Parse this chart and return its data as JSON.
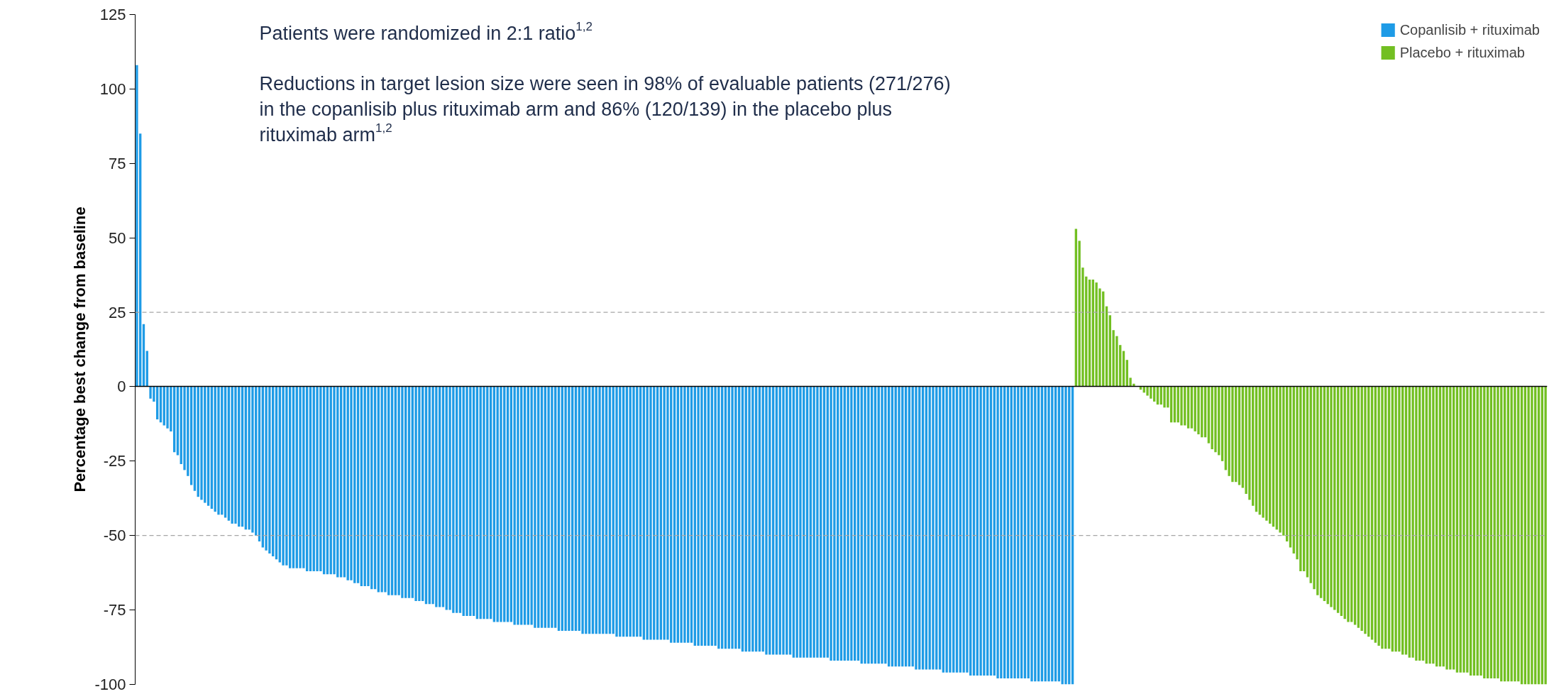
{
  "chart_data": {
    "type": "bar",
    "ylabel": "Percentage best change from baseline",
    "annotations": [
      "Patients were randomized in 2:1 ratio$^{1,2}$",
      "Reductions in target lesion size were seen in 98% of evaluable patients (271/276) in the copanlisib plus rituximab arm and 86% (120/139) in the placebo plus rituximab arm$^{1,2}$"
    ],
    "categories": [
      null,
      null,
      null,
      null,
      null,
      null,
      null,
      null,
      null,
      null,
      null,
      null,
      null,
      null,
      null,
      null,
      null,
      null,
      null,
      null,
      null,
      null,
      null,
      null,
      null,
      null,
      null,
      null,
      null,
      null,
      null,
      null,
      null,
      null,
      null,
      null,
      null,
      null,
      null,
      null,
      null,
      null,
      null,
      null,
      null,
      null,
      null,
      null,
      null,
      null,
      null,
      null,
      null,
      null,
      null,
      null,
      null,
      null,
      null,
      null,
      null,
      null,
      null,
      null,
      null,
      null,
      null,
      null,
      null,
      null,
      null,
      null,
      null,
      null,
      null,
      null,
      null,
      null,
      null,
      null,
      null,
      null,
      null,
      null,
      null,
      null,
      null,
      null,
      null,
      null,
      null,
      null,
      null,
      null,
      null,
      null,
      null,
      null,
      null,
      null,
      null,
      null,
      null,
      null,
      null,
      null,
      null,
      null,
      null,
      null,
      null,
      null,
      null,
      null,
      null,
      null,
      null,
      null,
      null,
      null,
      null,
      null,
      null,
      null,
      null,
      null,
      null,
      null,
      null,
      null,
      null,
      null,
      null,
      null,
      null,
      null,
      null,
      null,
      null,
      null,
      null,
      null,
      null,
      null,
      null,
      null,
      null,
      null,
      null,
      null,
      null,
      null,
      null,
      null,
      null,
      null,
      null,
      null,
      null,
      null,
      null,
      null,
      null,
      null,
      null,
      null,
      null,
      null,
      null,
      null,
      null,
      null,
      null,
      null,
      null,
      null,
      null,
      null,
      null,
      null,
      null,
      null,
      null,
      null,
      null,
      null,
      null,
      null,
      null,
      null,
      null,
      null,
      null,
      null,
      null,
      null,
      null,
      null,
      null,
      null,
      null,
      null,
      null,
      null,
      null,
      null,
      null,
      null,
      null,
      null,
      null,
      null,
      null,
      null,
      null,
      null,
      null,
      null,
      null,
      null,
      null,
      null,
      null,
      null,
      null,
      null,
      null,
      null,
      null,
      null,
      null,
      null,
      null,
      null,
      null,
      null,
      null,
      null,
      null,
      null,
      null,
      null,
      null,
      null,
      null,
      null,
      null,
      null,
      null,
      null,
      null,
      null,
      null,
      null,
      null,
      null,
      null,
      null,
      null,
      null,
      null,
      null,
      null,
      null,
      null,
      null,
      null,
      null,
      null,
      null,
      null,
      null,
      null,
      null,
      null,
      null,
      null,
      null,
      null,
      null,
      null,
      null,
      null,
      null,
      null,
      null,
      null,
      null,
      null,
      null,
      null,
      null,
      null,
      null,
      null,
      null,
      null,
      null,
      null,
      null,
      null,
      null,
      null,
      null,
      null,
      null,
      null,
      null,
      null,
      null,
      null,
      null,
      null,
      null,
      null,
      null,
      null,
      null,
      null,
      null,
      null,
      null,
      null,
      null,
      null,
      null,
      null,
      null,
      null,
      null,
      null,
      null,
      null,
      null,
      null,
      null,
      null,
      null,
      null,
      null,
      null,
      null,
      null,
      null,
      null,
      null,
      null,
      null,
      null,
      null,
      null,
      null,
      null,
      null,
      null,
      null,
      null,
      null,
      null,
      null,
      null,
      null,
      null,
      null,
      null,
      null,
      null,
      null,
      null,
      null,
      null,
      null,
      null,
      null,
      null,
      null,
      null,
      null,
      null,
      null,
      null,
      null,
      null,
      null,
      null,
      null,
      null,
      null,
      null,
      null,
      null,
      null,
      null,
      null,
      null,
      null,
      null,
      null,
      null,
      null,
      null,
      null,
      null,
      null,
      null,
      null,
      null,
      null,
      null,
      null,
      null,
      null,
      null,
      null,
      null
    ],
    "series": [
      {
        "name": "Copanlisib + rituximab",
        "color": "#1e9be6",
        "values": [
          108,
          85,
          21,
          12,
          -4,
          -5,
          -11,
          -12,
          -13,
          -14,
          -15,
          -22,
          -23,
          -26,
          -28,
          -30,
          -33,
          -35,
          -37,
          -38,
          -39,
          -40,
          -41,
          -42,
          -43,
          -43,
          -44,
          -45,
          -46,
          -46,
          -47,
          -47,
          -48,
          -48,
          -49,
          -50,
          -52,
          -54,
          -55,
          -56,
          -57,
          -58,
          -59,
          -60,
          -60,
          -61,
          -61,
          -61,
          -61,
          -61,
          -62,
          -62,
          -62,
          -62,
          -62,
          -63,
          -63,
          -63,
          -63,
          -64,
          -64,
          -64,
          -65,
          -65,
          -66,
          -66,
          -67,
          -67,
          -67,
          -68,
          -68,
          -69,
          -69,
          -69,
          -70,
          -70,
          -70,
          -70,
          -71,
          -71,
          -71,
          -71,
          -72,
          -72,
          -72,
          -73,
          -73,
          -73,
          -74,
          -74,
          -74,
          -75,
          -75,
          -76,
          -76,
          -76,
          -77,
          -77,
          -77,
          -77,
          -78,
          -78,
          -78,
          -78,
          -78,
          -79,
          -79,
          -79,
          -79,
          -79,
          -79,
          -80,
          -80,
          -80,
          -80,
          -80,
          -80,
          -81,
          -81,
          -81,
          -81,
          -81,
          -81,
          -81,
          -82,
          -82,
          -82,
          -82,
          -82,
          -82,
          -82,
          -83,
          -83,
          -83,
          -83,
          -83,
          -83,
          -83,
          -83,
          -83,
          -83,
          -84,
          -84,
          -84,
          -84,
          -84,
          -84,
          -84,
          -84,
          -85,
          -85,
          -85,
          -85,
          -85,
          -85,
          -85,
          -85,
          -86,
          -86,
          -86,
          -86,
          -86,
          -86,
          -86,
          -87,
          -87,
          -87,
          -87,
          -87,
          -87,
          -87,
          -88,
          -88,
          -88,
          -88,
          -88,
          -88,
          -88,
          -89,
          -89,
          -89,
          -89,
          -89,
          -89,
          -89,
          -90,
          -90,
          -90,
          -90,
          -90,
          -90,
          -90,
          -90,
          -91,
          -91,
          -91,
          -91,
          -91,
          -91,
          -91,
          -91,
          -91,
          -91,
          -91,
          -92,
          -92,
          -92,
          -92,
          -92,
          -92,
          -92,
          -92,
          -92,
          -93,
          -93,
          -93,
          -93,
          -93,
          -93,
          -93,
          -93,
          -94,
          -94,
          -94,
          -94,
          -94,
          -94,
          -94,
          -94,
          -95,
          -95,
          -95,
          -95,
          -95,
          -95,
          -95,
          -95,
          -96,
          -96,
          -96,
          -96,
          -96,
          -96,
          -96,
          -96,
          -97,
          -97,
          -97,
          -97,
          -97,
          -97,
          -97,
          -97,
          -98,
          -98,
          -98,
          -98,
          -98,
          -98,
          -98,
          -98,
          -98,
          -98,
          -99,
          -99,
          -99,
          -99,
          -99,
          -99,
          -99,
          -99,
          -99,
          -100,
          -100,
          -100,
          -100,
          null,
          null,
          null,
          null,
          null,
          null,
          null,
          null,
          null,
          null,
          null,
          null,
          null,
          null,
          null,
          null,
          null,
          null,
          null,
          null,
          null,
          null,
          null,
          null,
          null,
          null,
          null,
          null,
          null,
          null,
          null,
          null,
          null,
          null,
          null,
          null,
          null,
          null,
          null,
          null,
          null,
          null,
          null,
          null,
          null,
          null,
          null,
          null,
          null,
          null,
          null,
          null,
          null,
          null,
          null,
          null,
          null,
          null,
          null,
          null,
          null,
          null,
          null,
          null,
          null,
          null,
          null,
          null,
          null,
          null,
          null,
          null,
          null,
          null,
          null,
          null,
          null,
          null,
          null,
          null,
          null,
          null,
          null,
          null,
          null,
          null,
          null,
          null,
          null,
          null,
          null,
          null,
          null,
          null,
          null,
          null,
          null,
          null,
          null,
          null,
          null,
          null,
          null,
          null,
          null,
          null,
          null,
          null,
          null,
          null,
          null,
          null,
          null,
          null,
          null,
          null,
          null,
          null,
          null,
          null,
          null,
          null,
          null,
          null,
          null,
          null,
          null,
          null,
          null,
          null,
          null,
          null,
          null,
          null,
          null,
          null,
          null,
          null,
          null
        ]
      },
      {
        "name": "Placebo + rituximab",
        "color": "#72bf22",
        "values": [
          null,
          null,
          null,
          null,
          null,
          null,
          null,
          null,
          null,
          null,
          null,
          null,
          null,
          null,
          null,
          null,
          null,
          null,
          null,
          null,
          null,
          null,
          null,
          null,
          null,
          null,
          null,
          null,
          null,
          null,
          null,
          null,
          null,
          null,
          null,
          null,
          null,
          null,
          null,
          null,
          null,
          null,
          null,
          null,
          null,
          null,
          null,
          null,
          null,
          null,
          null,
          null,
          null,
          null,
          null,
          null,
          null,
          null,
          null,
          null,
          null,
          null,
          null,
          null,
          null,
          null,
          null,
          null,
          null,
          null,
          null,
          null,
          null,
          null,
          null,
          null,
          null,
          null,
          null,
          null,
          null,
          null,
          null,
          null,
          null,
          null,
          null,
          null,
          null,
          null,
          null,
          null,
          null,
          null,
          null,
          null,
          null,
          null,
          null,
          null,
          null,
          null,
          null,
          null,
          null,
          null,
          null,
          null,
          null,
          null,
          null,
          null,
          null,
          null,
          null,
          null,
          null,
          null,
          null,
          null,
          null,
          null,
          null,
          null,
          null,
          null,
          null,
          null,
          null,
          null,
          null,
          null,
          null,
          null,
          null,
          null,
          null,
          null,
          null,
          null,
          null,
          null,
          null,
          null,
          null,
          null,
          null,
          null,
          null,
          null,
          null,
          null,
          null,
          null,
          null,
          null,
          null,
          null,
          null,
          null,
          null,
          null,
          null,
          null,
          null,
          null,
          null,
          null,
          null,
          null,
          null,
          null,
          null,
          null,
          null,
          null,
          null,
          null,
          null,
          null,
          null,
          null,
          null,
          null,
          null,
          null,
          null,
          null,
          null,
          null,
          null,
          null,
          null,
          null,
          null,
          null,
          null,
          null,
          null,
          null,
          null,
          null,
          null,
          null,
          null,
          null,
          null,
          null,
          null,
          null,
          null,
          null,
          null,
          null,
          null,
          null,
          null,
          null,
          null,
          null,
          null,
          null,
          null,
          null,
          null,
          null,
          null,
          null,
          null,
          null,
          null,
          null,
          null,
          null,
          null,
          null,
          null,
          null,
          null,
          null,
          null,
          null,
          null,
          null,
          null,
          null,
          null,
          null,
          null,
          null,
          null,
          null,
          null,
          null,
          null,
          null,
          null,
          null,
          null,
          null,
          null,
          null,
          null,
          null,
          null,
          null,
          null,
          null,
          null,
          null,
          null,
          null,
          null,
          null,
          null,
          null,
          53,
          49,
          40,
          37,
          36,
          36,
          35,
          33,
          32,
          27,
          24,
          19,
          17,
          14,
          12,
          9,
          3,
          1,
          0,
          -1,
          -2,
          -3,
          -4,
          -5,
          -6,
          -6,
          -7,
          -7,
          -12,
          -12,
          -12,
          -13,
          -13,
          -14,
          -14,
          -15,
          -16,
          -17,
          -17,
          -19,
          -21,
          -22,
          -23,
          -25,
          -28,
          -30,
          -32,
          -32,
          -33,
          -34,
          -36,
          -38,
          -40,
          -42,
          -43,
          -44,
          -45,
          -46,
          -47,
          -48,
          -49,
          -50,
          -52,
          -54,
          -56,
          -58,
          -62,
          -62,
          -64,
          -66,
          -68,
          -70,
          -71,
          -72,
          -73,
          -74,
          -75,
          -76,
          -77,
          -78,
          -79,
          -79,
          -80,
          -81,
          -82,
          -83,
          -84,
          -85,
          -86,
          -87,
          -88,
          -88,
          -88,
          -89,
          -89,
          -89,
          -90,
          -90,
          -91,
          -91,
          -92,
          -92,
          -92,
          -93,
          -93,
          -93,
          -94,
          -94,
          -94,
          -95,
          -95,
          -95,
          -96,
          -96,
          -96,
          -96,
          -97,
          -97,
          -97,
          -97,
          -98,
          -98,
          -98,
          -98,
          -98,
          -99,
          -99,
          -99,
          -99,
          -99,
          -99,
          -100,
          -100,
          -100,
          -100,
          -100,
          -100,
          -100,
          -100
        ]
      }
    ],
    "ylim": [
      -100,
      125
    ],
    "yticks": [
      -100,
      -75,
      -50,
      -25,
      0,
      25,
      50,
      75,
      100,
      125
    ],
    "ref_lines": [
      {
        "axis": "y",
        "value": 25,
        "color": "#a6a6a6",
        "line_style": "dashed"
      },
      {
        "axis": "y",
        "value": -50,
        "color": "#a6a6a6",
        "line_style": "dashed"
      }
    ],
    "grid": false,
    "legend": "top right",
    "tick_labels": "y"
  }
}
